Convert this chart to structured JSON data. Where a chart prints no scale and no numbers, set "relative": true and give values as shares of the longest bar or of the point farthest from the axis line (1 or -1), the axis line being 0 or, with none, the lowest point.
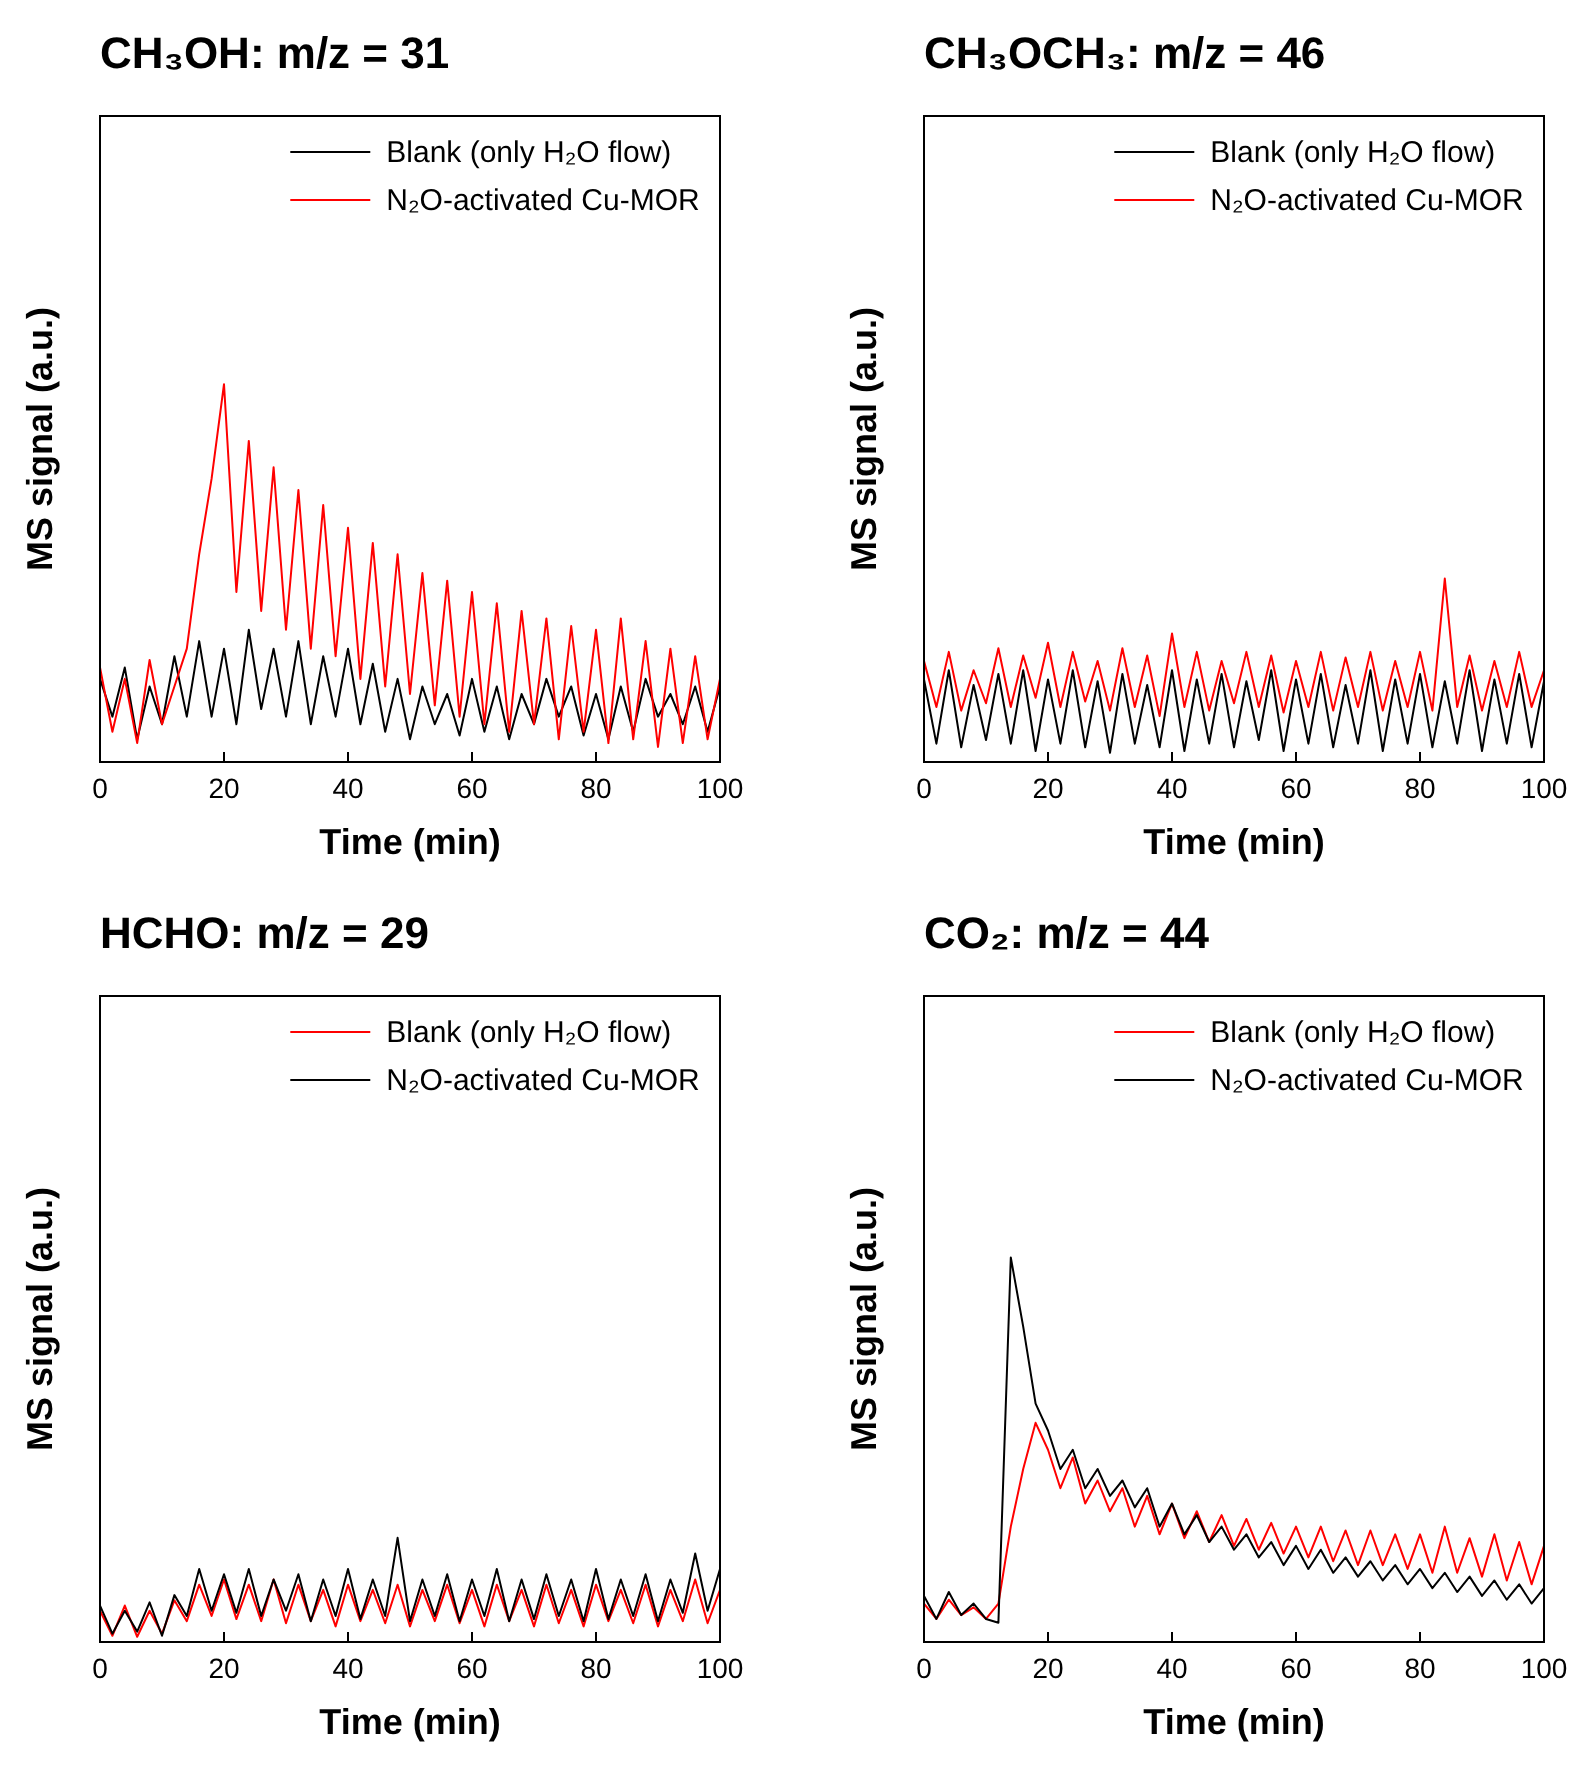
{
  "chart_data": [
    {
      "type": "line",
      "title": "CH₃OH: m/z = 31",
      "xlabel": "Time (min)",
      "ylabel": "MS signal (a.u.)",
      "relative": true,
      "legend": "top right",
      "xlim": [
        0,
        100
      ],
      "xticks": [
        0,
        20,
        40,
        60,
        80,
        100
      ],
      "x": [
        0,
        2,
        4,
        6,
        8,
        10,
        12,
        14,
        16,
        18,
        20,
        22,
        24,
        26,
        28,
        30,
        32,
        34,
        36,
        38,
        40,
        42,
        44,
        46,
        48,
        50,
        52,
        54,
        56,
        58,
        60,
        62,
        64,
        66,
        68,
        70,
        72,
        74,
        76,
        78,
        80,
        82,
        84,
        86,
        88,
        90,
        92,
        94,
        96,
        98,
        100
      ],
      "series": [
        {
          "name": "Blank (only H₂O flow)",
          "color": "#000000",
          "values": [
            0.22,
            0.12,
            0.25,
            0.06,
            0.2,
            0.1,
            0.28,
            0.12,
            0.32,
            0.12,
            0.3,
            0.1,
            0.35,
            0.14,
            0.3,
            0.12,
            0.32,
            0.1,
            0.28,
            0.12,
            0.3,
            0.1,
            0.26,
            0.08,
            0.22,
            0.06,
            0.2,
            0.1,
            0.18,
            0.07,
            0.22,
            0.08,
            0.2,
            0.06,
            0.18,
            0.1,
            0.22,
            0.12,
            0.2,
            0.07,
            0.18,
            0.06,
            0.2,
            0.08,
            0.22,
            0.12,
            0.18,
            0.1,
            0.2,
            0.08,
            0.2
          ]
        },
        {
          "name": "N₂O-activated Cu-MOR",
          "color": "#ff0000",
          "values": [
            0.25,
            0.08,
            0.22,
            0.05,
            0.27,
            0.1,
            0.2,
            0.3,
            0.55,
            0.75,
            1.0,
            0.45,
            0.85,
            0.4,
            0.78,
            0.35,
            0.72,
            0.3,
            0.68,
            0.28,
            0.62,
            0.22,
            0.58,
            0.2,
            0.55,
            0.18,
            0.5,
            0.15,
            0.48,
            0.12,
            0.45,
            0.1,
            0.42,
            0.08,
            0.4,
            0.1,
            0.38,
            0.06,
            0.36,
            0.08,
            0.35,
            0.05,
            0.38,
            0.06,
            0.32,
            0.04,
            0.3,
            0.05,
            0.28,
            0.06,
            0.22
          ]
        }
      ]
    },
    {
      "type": "line",
      "title": "CH₃OCH₃: m/z = 46",
      "xlabel": "Time (min)",
      "ylabel": "MS signal (a.u.)",
      "relative": true,
      "legend": "top right",
      "xlim": [
        0,
        100
      ],
      "xticks": [
        0,
        20,
        40,
        60,
        80,
        100
      ],
      "x": [
        0,
        2,
        4,
        6,
        8,
        10,
        12,
        14,
        16,
        18,
        20,
        22,
        24,
        26,
        28,
        30,
        32,
        34,
        36,
        38,
        40,
        42,
        44,
        46,
        48,
        50,
        52,
        54,
        56,
        58,
        60,
        62,
        64,
        66,
        68,
        70,
        72,
        74,
        76,
        78,
        80,
        82,
        84,
        86,
        88,
        90,
        92,
        94,
        96,
        98,
        100
      ],
      "series": [
        {
          "name": "Blank (only H₂O flow)",
          "color": "#000000",
          "values": [
            0.45,
            0.1,
            0.5,
            0.08,
            0.42,
            0.12,
            0.48,
            0.1,
            0.5,
            0.06,
            0.45,
            0.1,
            0.5,
            0.08,
            0.44,
            0.05,
            0.48,
            0.1,
            0.42,
            0.08,
            0.5,
            0.06,
            0.45,
            0.1,
            0.48,
            0.08,
            0.44,
            0.12,
            0.5,
            0.06,
            0.45,
            0.1,
            0.48,
            0.08,
            0.42,
            0.1,
            0.5,
            0.06,
            0.45,
            0.1,
            0.48,
            0.08,
            0.44,
            0.1,
            0.5,
            0.06,
            0.45,
            0.1,
            0.48,
            0.08,
            0.44
          ]
        },
        {
          "name": "N₂O-activated Cu-MOR",
          "color": "#ff0000",
          "values": [
            0.55,
            0.3,
            0.6,
            0.28,
            0.5,
            0.32,
            0.62,
            0.3,
            0.58,
            0.35,
            0.65,
            0.3,
            0.6,
            0.33,
            0.55,
            0.28,
            0.62,
            0.3,
            0.58,
            0.25,
            0.7,
            0.3,
            0.6,
            0.28,
            0.55,
            0.32,
            0.6,
            0.3,
            0.58,
            0.27,
            0.55,
            0.3,
            0.6,
            0.28,
            0.57,
            0.3,
            0.6,
            0.28,
            0.55,
            0.3,
            0.6,
            0.28,
            1.0,
            0.3,
            0.58,
            0.28,
            0.55,
            0.3,
            0.6,
            0.3,
            0.5
          ]
        }
      ]
    },
    {
      "type": "line",
      "title": "HCHO: m/z = 29",
      "xlabel": "Time (min)",
      "ylabel": "MS signal (a.u.)",
      "relative": true,
      "legend": "top right",
      "xlim": [
        0,
        100
      ],
      "xticks": [
        0,
        20,
        40,
        60,
        80,
        100
      ],
      "x": [
        0,
        2,
        4,
        6,
        8,
        10,
        12,
        14,
        16,
        18,
        20,
        22,
        24,
        26,
        28,
        30,
        32,
        34,
        36,
        38,
        40,
        42,
        44,
        46,
        48,
        50,
        52,
        54,
        56,
        58,
        60,
        62,
        64,
        66,
        68,
        70,
        72,
        74,
        76,
        78,
        80,
        82,
        84,
        86,
        88,
        90,
        92,
        94,
        96,
        98,
        100
      ],
      "series": [
        {
          "name": "Blank (only H₂O flow)",
          "color": "#ff0000",
          "values": [
            0.3,
            0.06,
            0.35,
            0.05,
            0.3,
            0.08,
            0.4,
            0.2,
            0.55,
            0.25,
            0.6,
            0.22,
            0.55,
            0.2,
            0.6,
            0.18,
            0.55,
            0.2,
            0.5,
            0.15,
            0.55,
            0.2,
            0.5,
            0.18,
            0.55,
            0.15,
            0.5,
            0.2,
            0.55,
            0.18,
            0.5,
            0.15,
            0.55,
            0.2,
            0.5,
            0.15,
            0.55,
            0.18,
            0.5,
            0.15,
            0.55,
            0.2,
            0.5,
            0.18,
            0.55,
            0.15,
            0.5,
            0.2,
            0.6,
            0.18,
            0.5
          ]
        },
        {
          "name": "N₂O-activated Cu-MOR",
          "color": "#000000",
          "values": [
            0.35,
            0.08,
            0.3,
            0.1,
            0.38,
            0.06,
            0.45,
            0.25,
            0.7,
            0.3,
            0.65,
            0.28,
            0.7,
            0.25,
            0.6,
            0.3,
            0.65,
            0.2,
            0.6,
            0.25,
            0.7,
            0.22,
            0.6,
            0.25,
            1.0,
            0.2,
            0.6,
            0.25,
            0.65,
            0.2,
            0.6,
            0.25,
            0.7,
            0.2,
            0.6,
            0.22,
            0.65,
            0.25,
            0.6,
            0.2,
            0.7,
            0.22,
            0.6,
            0.25,
            0.65,
            0.2,
            0.6,
            0.28,
            0.85,
            0.3,
            0.7
          ]
        }
      ]
    },
    {
      "type": "line",
      "title": "CO₂: m/z = 44",
      "xlabel": "Time (min)",
      "ylabel": "MS signal (a.u.)",
      "relative": true,
      "legend": "top right",
      "xlim": [
        0,
        100
      ],
      "xticks": [
        0,
        20,
        40,
        60,
        80,
        100
      ],
      "x": [
        0,
        2,
        4,
        6,
        8,
        10,
        12,
        14,
        16,
        18,
        20,
        22,
        24,
        26,
        28,
        30,
        32,
        34,
        36,
        38,
        40,
        42,
        44,
        46,
        48,
        50,
        52,
        54,
        56,
        58,
        60,
        62,
        64,
        66,
        68,
        70,
        72,
        74,
        76,
        78,
        80,
        82,
        84,
        86,
        88,
        90,
        92,
        94,
        96,
        98,
        100
      ],
      "series": [
        {
          "name": "Blank (only H₂O flow)",
          "color": "#ff0000",
          "values": [
            0.1,
            0.06,
            0.11,
            0.07,
            0.09,
            0.06,
            0.1,
            0.3,
            0.45,
            0.57,
            0.5,
            0.4,
            0.48,
            0.36,
            0.42,
            0.34,
            0.4,
            0.3,
            0.38,
            0.28,
            0.36,
            0.27,
            0.34,
            0.26,
            0.33,
            0.25,
            0.32,
            0.24,
            0.31,
            0.23,
            0.3,
            0.22,
            0.3,
            0.21,
            0.29,
            0.2,
            0.29,
            0.2,
            0.28,
            0.19,
            0.28,
            0.18,
            0.3,
            0.18,
            0.27,
            0.17,
            0.28,
            0.16,
            0.26,
            0.15,
            0.25
          ]
        },
        {
          "name": "N₂O-activated Cu-MOR",
          "color": "#000000",
          "values": [
            0.12,
            0.06,
            0.13,
            0.07,
            0.1,
            0.06,
            0.05,
            1.0,
            0.82,
            0.62,
            0.55,
            0.45,
            0.5,
            0.4,
            0.45,
            0.38,
            0.42,
            0.35,
            0.4,
            0.3,
            0.36,
            0.28,
            0.33,
            0.26,
            0.3,
            0.24,
            0.28,
            0.22,
            0.26,
            0.2,
            0.25,
            0.19,
            0.24,
            0.18,
            0.22,
            0.17,
            0.21,
            0.16,
            0.2,
            0.15,
            0.19,
            0.14,
            0.18,
            0.13,
            0.17,
            0.12,
            0.16,
            0.11,
            0.15,
            0.1,
            0.14
          ]
        }
      ]
    }
  ]
}
